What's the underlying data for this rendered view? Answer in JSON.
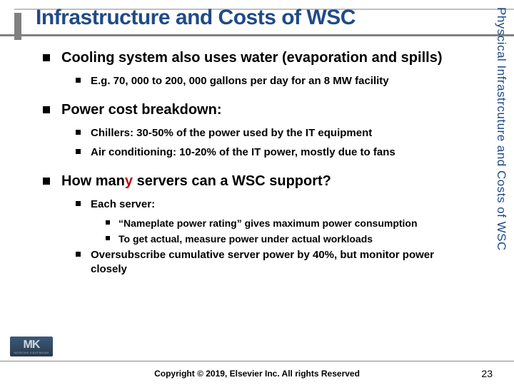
{
  "colors": {
    "title_color": "#204a87",
    "sidebar_color": "#204a87",
    "highlight_color": "#c00000",
    "text_color": "#000000",
    "rule_gray": "#808080",
    "background": "#ffffff"
  },
  "typography": {
    "title_fontsize": 30,
    "l1_fontsize": 20,
    "l2_fontsize": 15,
    "l3_fontsize": 14,
    "footer_fontsize": 12,
    "sidebar_fontsize": 17
  },
  "title": "Infrastructure and Costs of WSC",
  "sidebar_label": "Physcical Infrastrcuture and Costs of WSC",
  "bullets": {
    "cooling": {
      "text": "Cooling system also uses water (evaporation and spills)",
      "sub": {
        "example": "E.g. 70, 000 to 200, 000 gallons  per day for an 8 MW facility"
      }
    },
    "power": {
      "text": "Power cost breakdown:",
      "sub": {
        "chillers": "Chillers:  30-50% of the power used by the IT equipment",
        "ac": "Air conditioning:  10-20% of the IT power, mostly due to fans"
      }
    },
    "servers": {
      "pre": "How man",
      "hl": "y",
      "post": " servers can a WSC support?",
      "sub": {
        "each": "Each server:",
        "each_sub": {
          "nameplate": "“Nameplate power rating” gives maximum power consumption",
          "actual": "To get actual, measure power under actual workloads"
        },
        "oversub": "Oversubscribe cumulative server power by 40%, but monitor power closely"
      }
    }
  },
  "footer": {
    "copyright": "Copyright © 2019, Elsevier Inc. All rights Reserved",
    "page_number": "23"
  },
  "logo": {
    "main": "MK",
    "subtitle": "MORGAN KAUFMANN"
  }
}
